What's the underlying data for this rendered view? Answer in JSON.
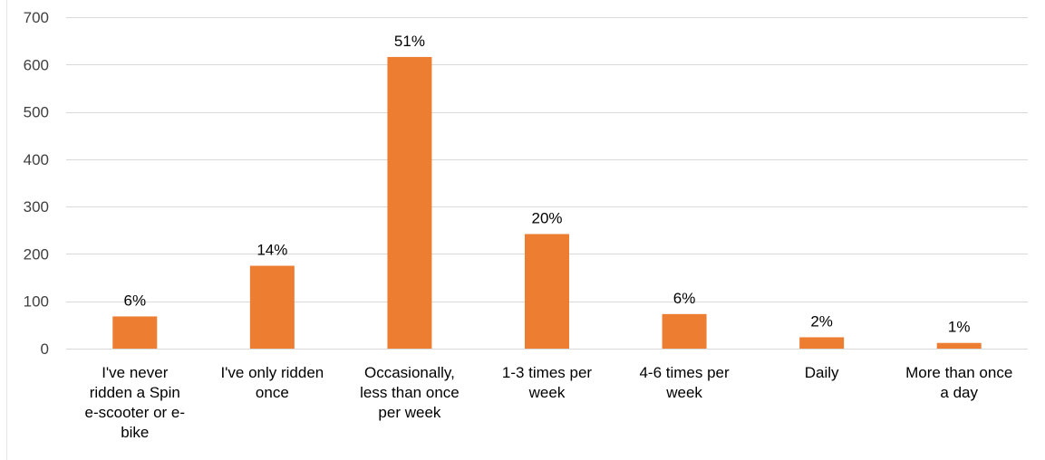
{
  "chart_data": {
    "type": "bar",
    "title": "",
    "xlabel": "",
    "ylabel": "",
    "ylim": [
      0,
      700
    ],
    "yticks": [
      0,
      100,
      200,
      300,
      400,
      500,
      600,
      700
    ],
    "grid": true,
    "legend": "none",
    "bar_color": "#ED7D31",
    "categories": [
      [
        "I've never",
        "ridden a Spin",
        "e-scooter or e-",
        "bike"
      ],
      [
        "I've only ridden",
        "once"
      ],
      [
        "Occasionally,",
        "less than once",
        "per week"
      ],
      [
        "1-3 times per",
        "week"
      ],
      [
        "4-6 times per",
        "week"
      ],
      [
        "Daily"
      ],
      [
        "More than once",
        "a day"
      ]
    ],
    "values": [
      68,
      175,
      616,
      242,
      73,
      24,
      12
    ],
    "data_labels": [
      "6%",
      "14%",
      "51%",
      "20%",
      "6%",
      "2%",
      "1%"
    ]
  }
}
